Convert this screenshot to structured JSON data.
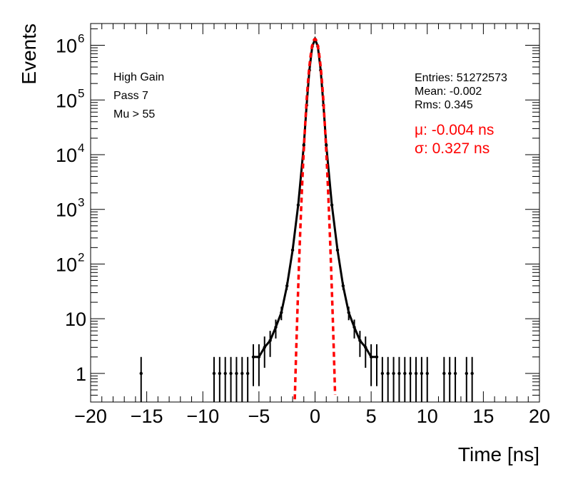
{
  "chart_data": {
    "type": "histogram",
    "title": "",
    "xlabel": "Time [ns]",
    "ylabel": "Events",
    "xlim": [
      -20,
      20
    ],
    "ylim": [
      0.3,
      2500000
    ],
    "yscale": "log",
    "xticks": [
      -20,
      -15,
      -10,
      -5,
      0,
      5,
      10,
      15,
      20
    ],
    "xtick_labels": [
      "−20",
      "−15",
      "−10",
      "−5",
      "0",
      "5",
      "10",
      "15",
      "20"
    ],
    "yticks": [
      {
        "value": 1,
        "label": "1",
        "exp": ""
      },
      {
        "value": 10,
        "label": "10",
        "exp": ""
      },
      {
        "value": 100,
        "label": "10",
        "exp": "2"
      },
      {
        "value": 1000,
        "label": "10",
        "exp": "3"
      },
      {
        "value": 10000,
        "label": "10",
        "exp": "4"
      },
      {
        "value": 100000,
        "label": "10",
        "exp": "5"
      },
      {
        "value": 1000000,
        "label": "10",
        "exp": "6"
      }
    ],
    "labels": [
      "High Gain",
      "Pass 7",
      "Mu > 55"
    ],
    "stats": [
      "Entries: 51272573",
      "Mean: -0.002",
      "Rms: 0.345"
    ],
    "fit_labels": [
      "μ: -0.004 ns",
      "σ: 0.327 ns"
    ],
    "fit": {
      "type": "gaussian",
      "mu": -0.004,
      "sigma": 0.327,
      "amplitude": 1300000,
      "range": [
        -1.9,
        1.9
      ]
    },
    "series": [
      {
        "name": "data",
        "description": "Time distribution, peak ~1.3e6 at 0 ns, exponential tails",
        "points": [
          [
            -15.5,
            1
          ],
          [
            -9.0,
            1
          ],
          [
            -8.5,
            1
          ],
          [
            -8.0,
            1
          ],
          [
            -7.5,
            1
          ],
          [
            -7.0,
            1
          ],
          [
            -6.5,
            1
          ],
          [
            -6.0,
            1
          ],
          [
            -5.5,
            2
          ],
          [
            -5.0,
            2
          ],
          [
            -4.5,
            3
          ],
          [
            -4.0,
            4
          ],
          [
            -3.5,
            7
          ],
          [
            -3.0,
            13
          ],
          [
            -2.5,
            40
          ],
          [
            -2.0,
            180
          ],
          [
            -1.5,
            1200
          ],
          [
            -1.0,
            15000
          ],
          [
            -0.75,
            80000
          ],
          [
            -0.5,
            350000
          ],
          [
            -0.25,
            950000
          ],
          [
            0.0,
            1300000
          ],
          [
            0.25,
            950000
          ],
          [
            0.5,
            350000
          ],
          [
            0.75,
            80000
          ],
          [
            1.0,
            15000
          ],
          [
            1.5,
            1200
          ],
          [
            2.0,
            180
          ],
          [
            2.5,
            40
          ],
          [
            3.0,
            13
          ],
          [
            3.5,
            7
          ],
          [
            4.0,
            4
          ],
          [
            4.5,
            3
          ],
          [
            5.0,
            2
          ],
          [
            5.5,
            2
          ],
          [
            6.0,
            1
          ],
          [
            6.5,
            1
          ],
          [
            7.0,
            1
          ],
          [
            7.5,
            1
          ],
          [
            8.0,
            1
          ],
          [
            8.5,
            1
          ],
          [
            9.0,
            1
          ],
          [
            9.5,
            1
          ],
          [
            10.0,
            1
          ],
          [
            11.5,
            1
          ],
          [
            12.0,
            1
          ],
          [
            12.5,
            1
          ],
          [
            13.5,
            1
          ],
          [
            14.0,
            1
          ]
        ]
      }
    ]
  }
}
